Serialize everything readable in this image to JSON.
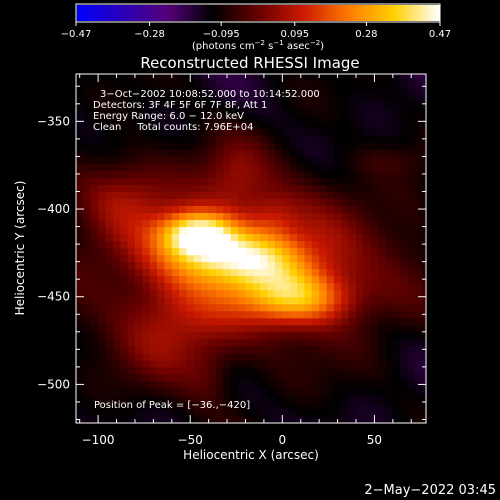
{
  "chart_data": {
    "type": "heatmap",
    "title": "Reconstructed RHESSI Image",
    "xlabel": "Heliocentric X (arcsec)",
    "ylabel": "Heliocentric Y (arcsec)",
    "xlim": [
      -112,
      78
    ],
    "ylim": [
      -522,
      -323
    ],
    "xticks": [
      -100,
      -50,
      0,
      50
    ],
    "xtick_labels": [
      "−100",
      "−50",
      "0",
      "50"
    ],
    "yticks": [
      -350,
      -400,
      -450,
      -500
    ],
    "ytick_labels": [
      "−350",
      "−400",
      "−450",
      "−500"
    ],
    "colorbar": {
      "range": [
        -0.47,
        0.47
      ],
      "ticks": [
        -0.47,
        -0.28,
        -0.095,
        0.095,
        0.28,
        0.47
      ],
      "tick_labels": [
        "−0.47",
        "−0.28",
        "−0.095",
        "0.095",
        "0.28",
        "0.47"
      ],
      "unit_text": "(photons cm",
      "unit_sup1": "−2",
      "unit_mid": " s",
      "unit_sup2": "−1",
      "unit_mid2": " asec",
      "unit_sup3": "−2",
      "unit_end": ")",
      "colors": [
        "#0000ff",
        "#2a00b8",
        "#55007a",
        "#000000",
        "#660000",
        "#cc1a00",
        "#ff7a00",
        "#ffd000",
        "#ffffff"
      ]
    },
    "annotations": [
      "3−Oct−2002 10:08:52.000 to 10:14:52.000",
      "Detectors: 3F 4F 5F 6F 7F 8F, Att 1",
      "Energy Range: 6.0 − 12.0 keV",
      "Clean     Total counts: 7.96E+04"
    ],
    "peak_text": "Position of Peak = [−36.,−420]",
    "peak": [
      -36,
      -420
    ],
    "sources": [
      {
        "x": -46,
        "y": -414,
        "sx": 14,
        "sy": 9,
        "amp": 0.45
      },
      {
        "x": -22,
        "y": -428,
        "sx": 26,
        "sy": 11,
        "amp": 0.36
      },
      {
        "x": 8,
        "y": -450,
        "sx": 22,
        "sy": 11,
        "amp": 0.34
      },
      {
        "x": -25,
        "y": -430,
        "sx": 60,
        "sy": 35,
        "amp": 0.2
      },
      {
        "x": -85,
        "y": -390,
        "sx": 18,
        "sy": 16,
        "amp": 0.12
      },
      {
        "x": -60,
        "y": -470,
        "sx": 20,
        "sy": 22,
        "amp": 0.12
      },
      {
        "x": -25,
        "y": -382,
        "sx": 12,
        "sy": 15,
        "amp": 0.1
      },
      {
        "x": -5,
        "y": -405,
        "sx": 10,
        "sy": 10,
        "amp": 0.09
      },
      {
        "x": -40,
        "y": -495,
        "sx": 9,
        "sy": 12,
        "amp": 0.06
      },
      {
        "x": 55,
        "y": -372,
        "sx": 16,
        "sy": 6,
        "amp": 0.04
      },
      {
        "x": 70,
        "y": -415,
        "sx": 12,
        "sy": 18,
        "amp": 0.03
      }
    ],
    "background": -0.13
  },
  "footer": {
    "timestamp": "2−May−2022 03:45"
  }
}
